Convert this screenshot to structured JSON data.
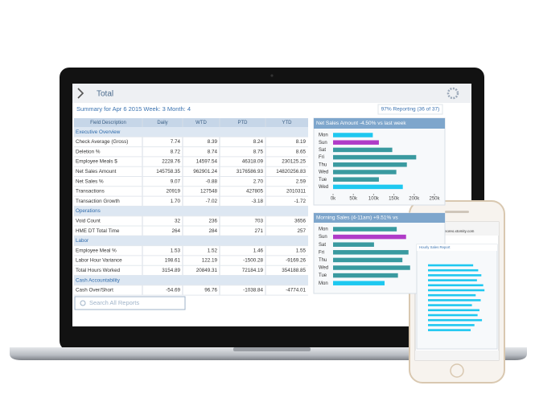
{
  "screen": {
    "nav_title": "Total",
    "summary": "Summary for Apr 6 2015  Week: 3  Month: 4",
    "reporting": "97% Reporting (36 of 37)",
    "search_placeholder": "Search All Reports"
  },
  "table": {
    "columns": [
      "Field Description",
      "Daily",
      "WTD",
      "PTD",
      "YTD"
    ],
    "rows": [
      [
        "Executive Overview"
      ],
      [
        "Check Average (Gross)",
        "7.74",
        "8.39",
        "8.24",
        "8.19"
      ],
      [
        "Deletion %",
        "8.72",
        "8.74",
        "8.75",
        "8.65"
      ],
      [
        "Employee Meals $",
        "2228.76",
        "14597.54",
        "46318.09",
        "230125.25"
      ],
      [
        "Net Sales Amount",
        "145758.35",
        "962901.24",
        "3176586.93",
        "14820256.83"
      ],
      [
        "Net Sales %",
        "9.07",
        "-0.88",
        "2.70",
        "2.59"
      ],
      [
        "Transactions",
        "20919",
        "127548",
        "427805",
        "2010311"
      ],
      [
        "Transaction Growth",
        "1.70",
        "-7.02",
        "-3.18",
        "-1.72"
      ],
      [
        "Operations"
      ],
      [
        "Void Count",
        "32",
        "236",
        "703",
        "3656"
      ],
      [
        "HME DT Total Time",
        "264",
        "284",
        "271",
        "257"
      ],
      [
        "Labor"
      ],
      [
        "Employee Meal %",
        "1.53",
        "1.52",
        "1.46",
        "1.55"
      ],
      [
        "Labor Hour Variance",
        "198.61",
        "122.19",
        "-1500.28",
        "-9169.26"
      ],
      [
        "Total Hours Worked",
        "3154.89",
        "20849.31",
        "72184.19",
        "354188.85"
      ],
      [
        "Cash Accountability"
      ],
      [
        "Cash Over/Short",
        "-54.69",
        "96.76",
        "-1038.84",
        "-4774.01"
      ]
    ]
  },
  "chart_data": [
    {
      "type": "bar",
      "orientation": "horizontal",
      "title": "Net Sales Amount -4.50% vs last week",
      "categories": [
        "Mon",
        "Sun",
        "Sat",
        "Fri",
        "Thu",
        "Wed",
        "Tue",
        "Wed"
      ],
      "values": [
        98000,
        113000,
        146000,
        205000,
        182000,
        156000,
        113000,
        172000
      ],
      "colors": [
        "#1ec8f0",
        "#b03cc8",
        "#3a9aa0",
        "#3a9aa0",
        "#3a9aa0",
        "#3a9aa0",
        "#3a9aa0",
        "#1ec8f0"
      ],
      "xlim": [
        0,
        250000
      ],
      "xticks": [
        {
          "value": 0,
          "label": "0k"
        },
        {
          "value": 50000,
          "label": "50k"
        },
        {
          "value": 100000,
          "label": "100k"
        },
        {
          "value": 150000,
          "label": "150k"
        },
        {
          "value": 200000,
          "label": "200k"
        },
        {
          "value": 250000,
          "label": "250k"
        }
      ]
    },
    {
      "type": "bar",
      "orientation": "horizontal",
      "title": "Morning Sales (4-11am) +9.51% vs",
      "categories": [
        "Mon",
        "Sun",
        "Sat",
        "Fri",
        "Thu",
        "Wed",
        "Tue",
        "Mon"
      ],
      "values": [
        157000,
        180000,
        101000,
        186000,
        171000,
        190000,
        160000,
        127000
      ],
      "colors": [
        "#3a9aa0",
        "#b03cc8",
        "#3a9aa0",
        "#3a9aa0",
        "#3a9aa0",
        "#3a9aa0",
        "#3a9aa0",
        "#1ec8f0"
      ],
      "xlim": [
        0,
        250000
      ]
    },
    {
      "type": "bar",
      "orientation": "horizontal",
      "title": "Hourly Sales Report",
      "values": [
        72,
        80,
        85,
        78,
        88,
        90,
        76,
        84,
        70,
        82,
        79,
        86,
        74,
        68
      ],
      "colors": [
        "#1ec8f0"
      ],
      "xlim": [
        0,
        100
      ]
    }
  ],
  "phone": {
    "url": "demoreo.xtomity.com",
    "store": "All Stores"
  }
}
